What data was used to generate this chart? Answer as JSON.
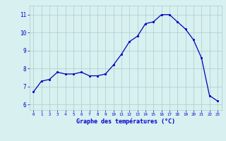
{
  "hours": [
    0,
    1,
    2,
    3,
    4,
    5,
    6,
    7,
    8,
    9,
    10,
    11,
    12,
    13,
    14,
    15,
    16,
    17,
    18,
    19,
    20,
    21,
    22,
    23
  ],
  "temps": [
    6.7,
    7.3,
    7.4,
    7.8,
    7.7,
    7.7,
    7.8,
    7.6,
    7.6,
    7.7,
    8.2,
    8.8,
    9.5,
    9.8,
    10.5,
    10.6,
    11.0,
    11.0,
    10.6,
    10.2,
    9.6,
    8.6,
    6.5,
    6.2
  ],
  "line_color": "#0000bb",
  "marker": "s",
  "marker_size": 1.8,
  "bg_color": "#d8f0f0",
  "grid_color": "#aacccc",
  "axis_label_color": "#0000cc",
  "tick_color": "#0000cc",
  "xlabel": "Graphe des températures (°C)",
  "ylabel_ticks": [
    6,
    7,
    8,
    9,
    10,
    11
  ],
  "ylim": [
    5.7,
    11.5
  ],
  "xlim": [
    -0.5,
    23.5
  ]
}
